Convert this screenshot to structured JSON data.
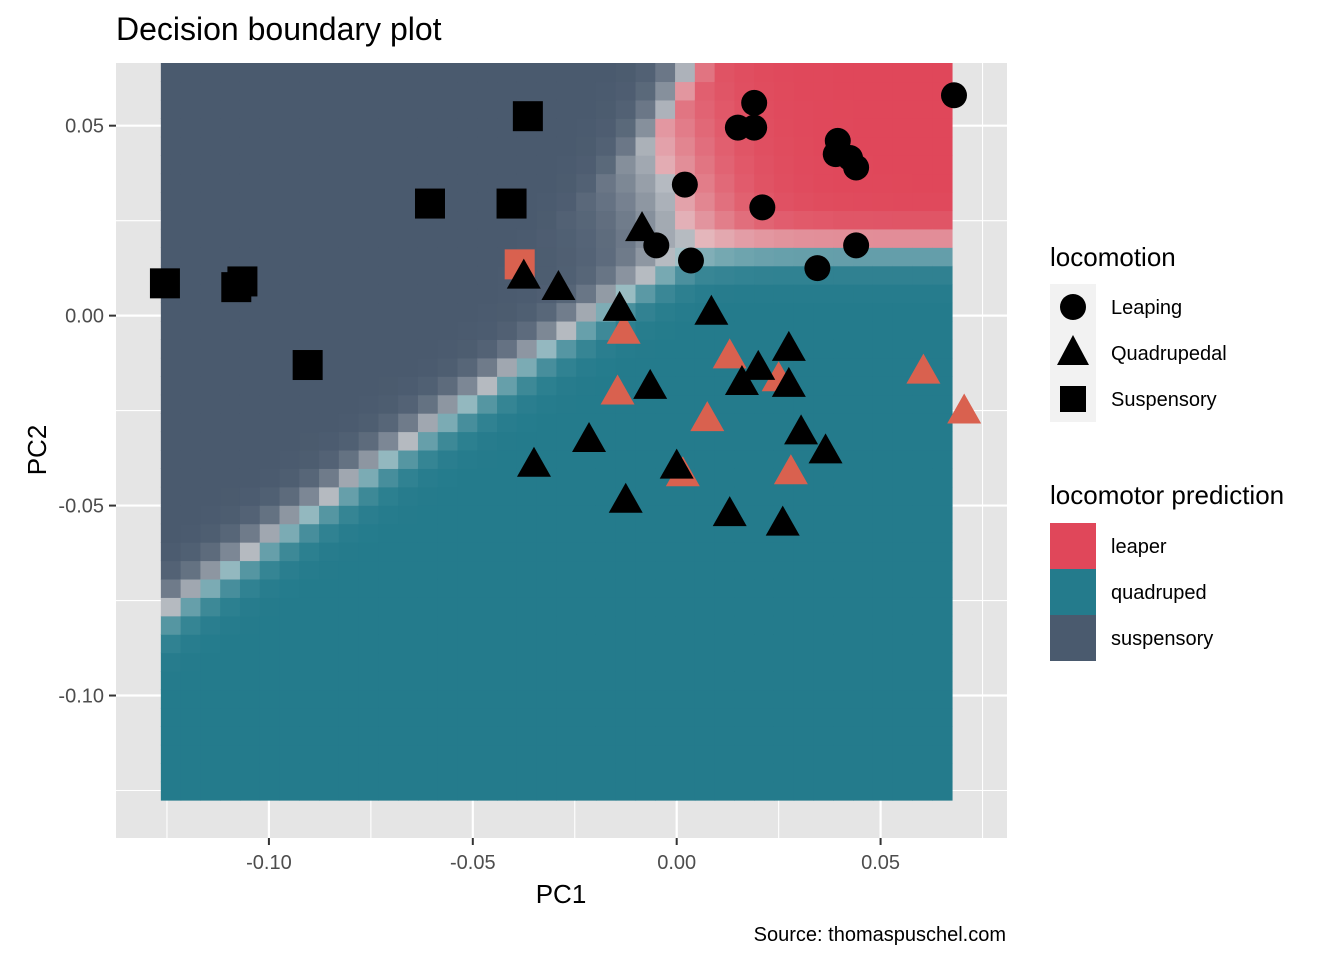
{
  "chart_data": {
    "type": "scatter",
    "title": "Decision boundary plot",
    "xlabel": "PC1",
    "ylabel": "PC2",
    "caption": "Source: thomaspuschel.com",
    "xlim": [
      -0.1375,
      0.081
    ],
    "ylim": [
      -0.1375,
      0.0665
    ],
    "x_ticks": [
      -0.1,
      -0.05,
      0.0,
      0.05
    ],
    "x_tick_labels": [
      "-0.10",
      "-0.05",
      "0.00",
      "0.05"
    ],
    "y_ticks": [
      -0.1,
      -0.05,
      0.0,
      0.05
    ],
    "y_tick_labels": [
      "-0.10",
      "-0.05",
      "0.00",
      "0.05"
    ],
    "grid": true,
    "background_color": "#e5e5e5",
    "grid_color": "#ffffff",
    "legend_position": "right",
    "decision_region": {
      "x_range": [
        -0.1265,
        0.0675
      ],
      "y_range": [
        -0.1275,
        0.0665
      ],
      "classes": [
        "leaper",
        "quadruped",
        "suspensory"
      ],
      "colors": {
        "leaper": "#e0475a",
        "quadruped": "#247b8c",
        "suspensory": "#4a5a6e"
      }
    },
    "legend_locomotion": {
      "title": "locomotion",
      "items": [
        {
          "label": "Leaping",
          "shape": "circle"
        },
        {
          "label": "Quadrupedal",
          "shape": "triangle"
        },
        {
          "label": "Suspensory",
          "shape": "square"
        }
      ]
    },
    "legend_prediction": {
      "title": "locomotor prediction",
      "items": [
        {
          "label": "leaper",
          "color": "#e0475a"
        },
        {
          "label": "quadruped",
          "color": "#247b8c"
        },
        {
          "label": "suspensory",
          "color": "#4a5a6e"
        }
      ]
    },
    "misclassified_color": "#d9614f",
    "series": [
      {
        "name": "Leaping",
        "shape": "circle",
        "color": "#000000",
        "points": [
          {
            "x": 0.068,
            "y": 0.058
          },
          {
            "x": 0.019,
            "y": 0.056
          },
          {
            "x": 0.015,
            "y": 0.0495
          },
          {
            "x": 0.019,
            "y": 0.0495
          },
          {
            "x": 0.0395,
            "y": 0.046
          },
          {
            "x": 0.039,
            "y": 0.0425
          },
          {
            "x": 0.0425,
            "y": 0.0415
          },
          {
            "x": 0.044,
            "y": 0.039
          },
          {
            "x": 0.002,
            "y": 0.0345
          },
          {
            "x": 0.021,
            "y": 0.0285
          },
          {
            "x": -0.005,
            "y": 0.0185
          },
          {
            "x": 0.044,
            "y": 0.0185
          },
          {
            "x": 0.0035,
            "y": 0.0145
          },
          {
            "x": 0.0345,
            "y": 0.0125
          }
        ]
      },
      {
        "name": "Quadrupedal",
        "shape": "triangle",
        "color": "#000000",
        "points": [
          {
            "x": -0.0085,
            "y": 0.0225
          },
          {
            "x": -0.0375,
            "y": 0.01
          },
          {
            "x": -0.029,
            "y": 0.007
          },
          {
            "x": -0.014,
            "y": 0.0015
          },
          {
            "x": 0.0085,
            "y": 0.0005
          },
          {
            "x": 0.0275,
            "y": -0.009
          },
          {
            "x": 0.02,
            "y": -0.014
          },
          {
            "x": 0.016,
            "y": -0.018
          },
          {
            "x": 0.0275,
            "y": -0.0185
          },
          {
            "x": -0.0065,
            "y": -0.019
          },
          {
            "x": 0.0305,
            "y": -0.031
          },
          {
            "x": -0.0215,
            "y": -0.033
          },
          {
            "x": 0.0365,
            "y": -0.036
          },
          {
            "x": -0.035,
            "y": -0.0395
          },
          {
            "x": 0.0,
            "y": -0.04
          },
          {
            "x": -0.0125,
            "y": -0.049
          },
          {
            "x": 0.013,
            "y": -0.0525
          },
          {
            "x": 0.026,
            "y": -0.055
          }
        ]
      },
      {
        "name": "Suspensory",
        "shape": "square",
        "color": "#000000",
        "points": [
          {
            "x": -0.0365,
            "y": 0.0525
          },
          {
            "x": -0.0605,
            "y": 0.0295
          },
          {
            "x": -0.0405,
            "y": 0.0295
          },
          {
            "x": -0.1255,
            "y": 0.0085
          },
          {
            "x": -0.1065,
            "y": 0.009
          },
          {
            "x": -0.108,
            "y": 0.0075
          },
          {
            "x": -0.0905,
            "y": -0.013
          }
        ]
      },
      {
        "name": "misclassified-quadrupedal",
        "shape": "triangle",
        "color": "#d9614f",
        "points": [
          {
            "x": -0.013,
            "y": -0.0045
          },
          {
            "x": 0.013,
            "y": -0.011
          },
          {
            "x": -0.0145,
            "y": -0.0205
          },
          {
            "x": 0.0075,
            "y": -0.0275
          },
          {
            "x": 0.025,
            "y": -0.017
          },
          {
            "x": 0.0605,
            "y": -0.015
          },
          {
            "x": 0.0705,
            "y": -0.0255
          },
          {
            "x": 0.028,
            "y": -0.0415
          },
          {
            "x": 0.0015,
            "y": -0.042
          }
        ]
      },
      {
        "name": "misclassified-suspensory",
        "shape": "square",
        "color": "#d9614f",
        "points": [
          {
            "x": -0.0385,
            "y": 0.0135
          }
        ]
      }
    ]
  }
}
